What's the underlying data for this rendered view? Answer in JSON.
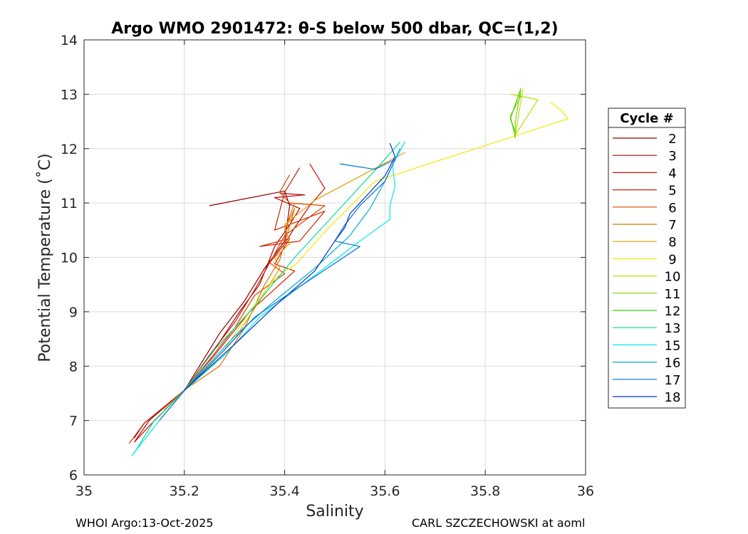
{
  "footer": {
    "left": "WHOI Argo:13-Oct-2025",
    "right": "CARL SZCZECHOWSKI at aoml"
  },
  "chart_data": {
    "type": "line",
    "title": "Argo WMO 2901472: θ-S below 500 dbar,  QC=(1,2)",
    "xlabel": "Salinity",
    "ylabel": "Potential Temperature (˚C)",
    "xlim": [
      35,
      36
    ],
    "ylim": [
      6,
      14
    ],
    "xticks": [
      "35",
      "35.2",
      "35.4",
      "35.6",
      "35.8",
      "36"
    ],
    "yticks": [
      "6",
      "7",
      "8",
      "9",
      "10",
      "11",
      "12",
      "13",
      "14"
    ],
    "grid": true,
    "legend": {
      "title": "Cycle #",
      "position": "right"
    },
    "series": [
      {
        "name": "2",
        "color": "#8b0000",
        "points": [
          [
            35.25,
            10.95
          ],
          [
            35.4,
            11.22
          ],
          [
            35.41,
            10.95
          ],
          [
            35.4,
            10.3
          ],
          [
            35.36,
            9.8
          ],
          [
            35.32,
            9.2
          ],
          [
            35.27,
            8.6
          ],
          [
            35.2,
            7.55
          ],
          [
            35.12,
            6.95
          ],
          [
            35.1,
            6.68
          ]
        ]
      },
      {
        "name": "3",
        "color": "#b00000",
        "points": [
          [
            35.39,
            11.18
          ],
          [
            35.44,
            11.15
          ],
          [
            35.38,
            11.1
          ],
          [
            35.43,
            10.9
          ],
          [
            35.41,
            10.6
          ],
          [
            35.38,
            10.2
          ],
          [
            35.35,
            9.5
          ],
          [
            35.31,
            9.0
          ],
          [
            35.26,
            8.3
          ],
          [
            35.2,
            7.56
          ],
          [
            35.13,
            7.0
          ],
          [
            35.1,
            6.6
          ]
        ]
      },
      {
        "name": "4",
        "color": "#cc1100",
        "points": [
          [
            35.45,
            11.72
          ],
          [
            35.48,
            11.27
          ],
          [
            35.45,
            10.95
          ],
          [
            35.42,
            10.55
          ],
          [
            35.4,
            10.25
          ],
          [
            35.37,
            9.9
          ],
          [
            35.34,
            9.4
          ],
          [
            35.3,
            8.8
          ],
          [
            35.25,
            8.2
          ],
          [
            35.2,
            7.55
          ],
          [
            35.13,
            6.9
          ],
          [
            35.1,
            6.6
          ]
        ]
      },
      {
        "name": "5",
        "color": "#cc2200",
        "points": [
          [
            35.43,
            11.65
          ],
          [
            35.4,
            11.2
          ],
          [
            35.38,
            10.5
          ],
          [
            35.48,
            10.85
          ],
          [
            35.43,
            10.3
          ],
          [
            35.35,
            10.2
          ],
          [
            35.41,
            10.35
          ],
          [
            35.38,
            9.88
          ],
          [
            35.42,
            9.75
          ],
          [
            35.33,
            9.0
          ],
          [
            35.26,
            8.2
          ],
          [
            35.2,
            7.56
          ],
          [
            35.12,
            6.95
          ],
          [
            35.09,
            6.58
          ]
        ]
      },
      {
        "name": "6",
        "color": "#dd4400",
        "points": [
          [
            35.41,
            11.52
          ],
          [
            35.39,
            11.2
          ],
          [
            35.41,
            11.0
          ],
          [
            35.48,
            10.95
          ],
          [
            35.4,
            10.4
          ],
          [
            35.37,
            9.9
          ],
          [
            35.4,
            9.7
          ],
          [
            35.34,
            9.3
          ],
          [
            35.3,
            8.7
          ],
          [
            35.24,
            8.0
          ],
          [
            35.2,
            7.56
          ]
        ]
      },
      {
        "name": "7",
        "color": "#e07000",
        "points": [
          [
            35.42,
            11.0
          ],
          [
            35.4,
            10.5
          ],
          [
            35.42,
            10.9
          ],
          [
            35.39,
            9.95
          ],
          [
            35.36,
            9.5
          ],
          [
            35.32,
            8.7
          ],
          [
            35.27,
            8.0
          ],
          [
            35.2,
            7.56
          ],
          [
            35.16,
            7.2
          ]
        ]
      },
      {
        "name": "8",
        "color": "#e89a00",
        "points": [
          [
            35.64,
            11.93
          ],
          [
            35.46,
            11.05
          ],
          [
            35.4,
            10.6
          ],
          [
            35.41,
            10.25
          ],
          [
            35.38,
            10.0
          ],
          [
            35.39,
            9.8
          ],
          [
            35.35,
            9.2
          ],
          [
            35.3,
            8.5
          ],
          [
            35.25,
            8.0
          ],
          [
            35.2,
            7.55
          ],
          [
            35.16,
            7.2
          ]
        ]
      },
      {
        "name": "9",
        "color": "#f0e800",
        "points": [
          [
            35.93,
            12.85
          ],
          [
            35.95,
            12.72
          ],
          [
            35.965,
            12.55
          ],
          [
            35.58,
            11.4
          ],
          [
            35.48,
            10.47
          ],
          [
            35.42,
            9.85
          ],
          [
            35.4,
            9.75
          ],
          [
            35.38,
            9.6
          ],
          [
            35.33,
            9.0
          ],
          [
            35.28,
            8.3
          ],
          [
            35.23,
            7.8
          ],
          [
            35.2,
            7.55
          ],
          [
            35.15,
            7.0
          ]
        ]
      },
      {
        "name": "10",
        "color": "#b8e000",
        "points": [
          [
            35.85,
            13.0
          ],
          [
            35.905,
            12.9
          ],
          [
            35.86,
            12.25
          ],
          [
            35.875,
            13.1
          ]
        ]
      },
      {
        "name": "11",
        "color": "#7ed400",
        "points": [
          [
            35.87,
            13.05
          ],
          [
            35.86,
            12.5
          ],
          [
            35.86,
            12.2
          ],
          [
            35.85,
            12.6
          ],
          [
            35.87,
            12.95
          ],
          [
            35.87,
            13.12
          ]
        ]
      },
      {
        "name": "12",
        "color": "#3fd000",
        "points": [
          [
            35.87,
            13.08
          ],
          [
            35.85,
            12.55
          ],
          [
            35.86,
            12.3
          ]
        ]
      },
      {
        "name": "13",
        "color": "#00e09a",
        "points": [
          [
            35.63,
            12.12
          ],
          [
            35.58,
            11.6
          ],
          [
            35.5,
            10.8
          ],
          [
            35.42,
            10.0
          ],
          [
            35.34,
            9.1
          ],
          [
            35.26,
            8.3
          ],
          [
            35.2,
            7.55
          ],
          [
            35.14,
            7.0
          ],
          [
            35.1,
            6.4
          ]
        ]
      },
      {
        "name": "15",
        "color": "#00e8f0",
        "points": [
          [
            35.64,
            12.13
          ],
          [
            35.615,
            11.7
          ],
          [
            35.62,
            11.3
          ],
          [
            35.61,
            10.95
          ],
          [
            35.61,
            10.7
          ],
          [
            35.55,
            10.3
          ],
          [
            35.45,
            9.6
          ],
          [
            35.35,
            8.9
          ],
          [
            35.28,
            8.2
          ],
          [
            35.2,
            7.55
          ],
          [
            35.15,
            7.0
          ],
          [
            35.095,
            6.35
          ]
        ]
      },
      {
        "name": "16",
        "color": "#00a8e0",
        "points": [
          [
            35.63,
            12.0
          ],
          [
            35.6,
            11.4
          ],
          [
            35.57,
            10.9
          ],
          [
            35.53,
            10.4
          ],
          [
            35.46,
            9.8
          ],
          [
            35.38,
            9.2
          ],
          [
            35.3,
            8.55
          ],
          [
            35.2,
            7.55
          ]
        ]
      },
      {
        "name": "17",
        "color": "#0070d8",
        "points": [
          [
            35.51,
            11.72
          ],
          [
            35.58,
            11.62
          ],
          [
            35.62,
            11.8
          ],
          [
            35.6,
            11.4
          ],
          [
            35.55,
            10.95
          ],
          [
            35.52,
            10.6
          ],
          [
            35.5,
            10.3
          ],
          [
            35.55,
            10.2
          ],
          [
            35.42,
            9.4
          ],
          [
            35.34,
            8.9
          ],
          [
            35.28,
            8.3
          ],
          [
            35.2,
            7.55
          ],
          [
            35.15,
            7.0
          ]
        ]
      },
      {
        "name": "18",
        "color": "#0033c0",
        "points": [
          [
            35.61,
            12.1
          ],
          [
            35.62,
            11.85
          ],
          [
            35.6,
            11.5
          ],
          [
            35.56,
            11.1
          ],
          [
            35.53,
            10.8
          ],
          [
            35.52,
            10.55
          ],
          [
            35.5,
            10.3
          ],
          [
            35.46,
            9.75
          ],
          [
            35.38,
            9.1
          ],
          [
            35.3,
            8.4
          ],
          [
            35.2,
            7.56
          ]
        ]
      }
    ]
  }
}
